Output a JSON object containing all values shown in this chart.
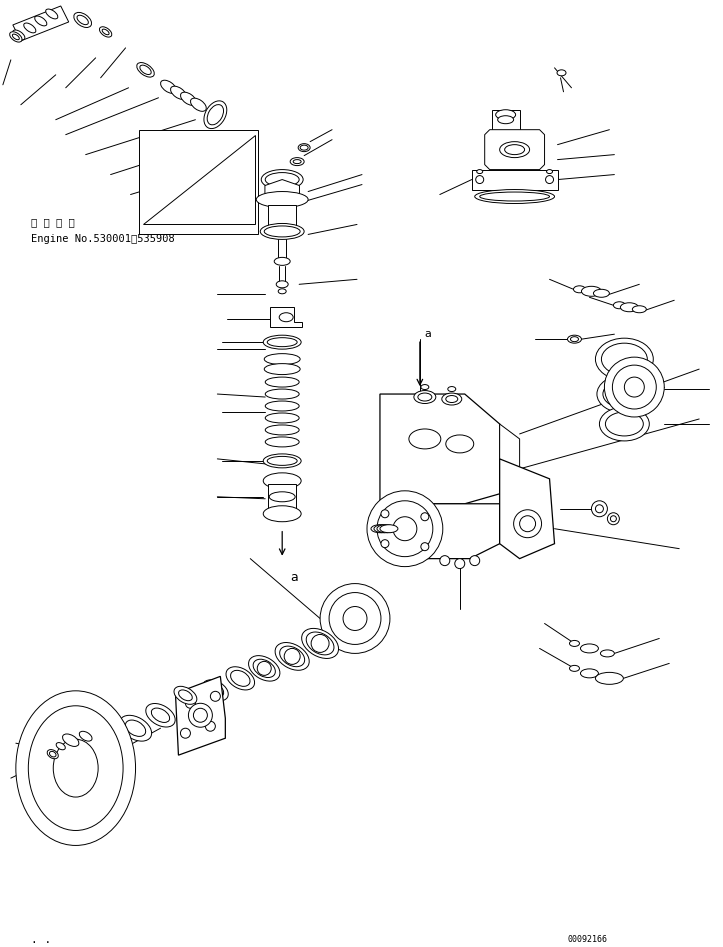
{
  "bg_color": "#ffffff",
  "line_color": "#000000",
  "fig_width": 7.23,
  "fig_height": 9.47,
  "dpi": 100,
  "text_label1": "適 用 号 機",
  "text_label2": "Engine No.530001～535908",
  "part_number": "00092166",
  "annotation_a": "a"
}
